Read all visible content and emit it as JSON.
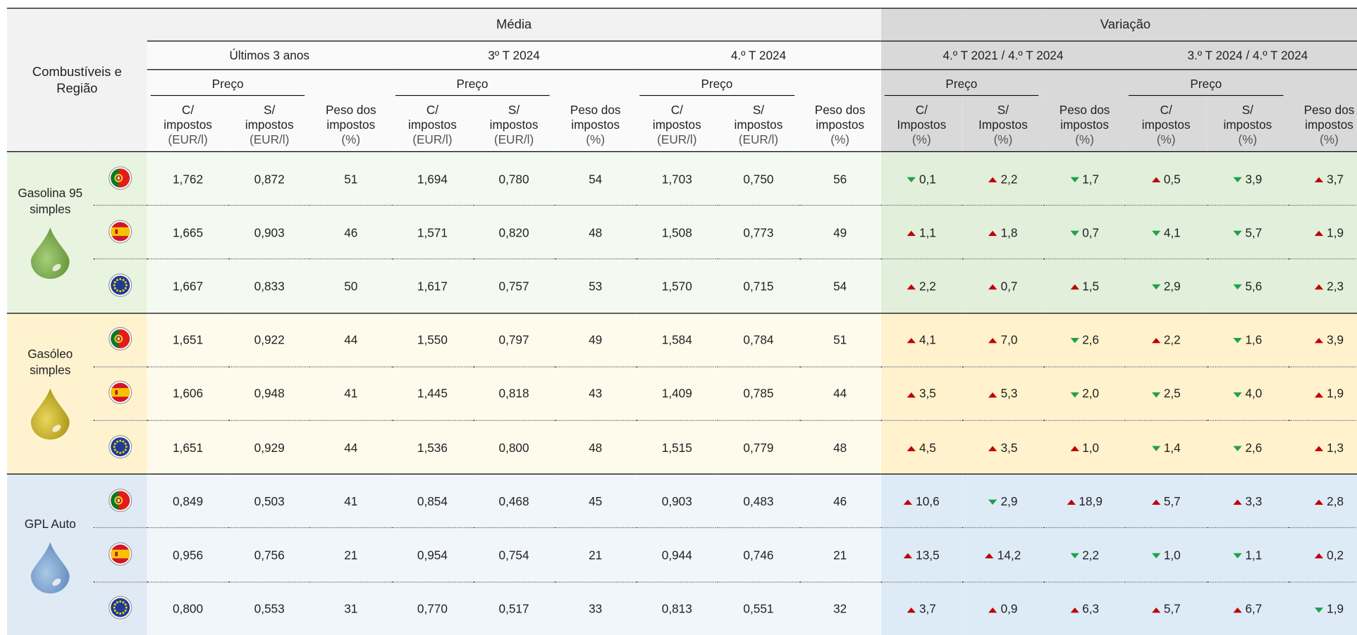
{
  "header": {
    "corner": "Combustíveis e Região",
    "groups": [
      {
        "label": "Média",
        "periods": [
          {
            "label": "Últimos 3 anos",
            "price": "Preço",
            "columns": [
              [
                "C/",
                "impostos",
                "(EUR/l)"
              ],
              [
                "S/",
                "impostos",
                "(EUR/l)"
              ],
              [
                "Peso dos",
                "impostos",
                "(%)"
              ]
            ]
          },
          {
            "label": "3º T 2024",
            "price": "Preço",
            "columns": [
              [
                "C/",
                "impostos",
                "(EUR/l)"
              ],
              [
                "S/",
                "impostos",
                "(EUR/l)"
              ],
              [
                "Peso dos",
                "impostos",
                "(%)"
              ]
            ]
          },
          {
            "label": "4.º T 2024",
            "price": "Preço",
            "columns": [
              [
                "C/",
                "impostos",
                "(EUR/l)"
              ],
              [
                "S/",
                "impostos",
                "(EUR/l)"
              ],
              [
                "Peso dos",
                "impostos",
                "(%)"
              ]
            ]
          }
        ]
      },
      {
        "label": "Variação",
        "periods": [
          {
            "label": "4.º T 2021 / 4.º T 2024",
            "price": "Preço",
            "columns": [
              [
                "C/",
                "Impostos",
                "(%)"
              ],
              [
                "S/",
                "Impostos",
                "(%)"
              ],
              [
                "Peso dos",
                "impostos",
                "(%)"
              ]
            ]
          },
          {
            "label": "3.º T 2024 / 4.º T 2024",
            "price": "Preço",
            "columns": [
              [
                "C/",
                "impostos",
                "(%)"
              ],
              [
                "S/",
                "impostos",
                "(%)"
              ],
              [
                "Peso dos",
                "impostos",
                "(%)"
              ]
            ]
          }
        ]
      }
    ]
  },
  "groups": [
    {
      "fuel": "Gasolina 95 simples",
      "rows": [
        {
          "values": [
            "1,762",
            "0,872",
            "51",
            "1,694",
            "0,780",
            "54",
            "1,703",
            "0,750",
            "56"
          ],
          "changes": [
            {
              "value": "0,1",
              "dir": "down"
            },
            {
              "value": "2,2",
              "dir": "up"
            },
            {
              "value": "1,7",
              "dir": "down"
            },
            {
              "value": "0,5",
              "dir": "up"
            },
            {
              "value": "3,9",
              "dir": "down"
            },
            {
              "value": "3,7",
              "dir": "up"
            }
          ]
        },
        {
          "values": [
            "1,665",
            "0,903",
            "46",
            "1,571",
            "0,820",
            "48",
            "1,508",
            "0,773",
            "49"
          ],
          "changes": [
            {
              "value": "1,1",
              "dir": "up"
            },
            {
              "value": "1,8",
              "dir": "up"
            },
            {
              "value": "0,7",
              "dir": "down"
            },
            {
              "value": "4,1",
              "dir": "down"
            },
            {
              "value": "5,7",
              "dir": "down"
            },
            {
              "value": "1,9",
              "dir": "up"
            }
          ]
        },
        {
          "values": [
            "1,667",
            "0,833",
            "50",
            "1,617",
            "0,757",
            "53",
            "1,570",
            "0,715",
            "54"
          ],
          "changes": [
            {
              "value": "2,2",
              "dir": "up"
            },
            {
              "value": "0,7",
              "dir": "up"
            },
            {
              "value": "1,5",
              "dir": "up"
            },
            {
              "value": "2,9",
              "dir": "down"
            },
            {
              "value": "5,6",
              "dir": "down"
            },
            {
              "value": "2,3",
              "dir": "up"
            }
          ]
        }
      ]
    },
    {
      "fuel": "Gasóleo simples",
      "rows": [
        {
          "values": [
            "1,651",
            "0,922",
            "44",
            "1,550",
            "0,797",
            "49",
            "1,584",
            "0,784",
            "51"
          ],
          "changes": [
            {
              "value": "4,1",
              "dir": "up"
            },
            {
              "value": "7,0",
              "dir": "up"
            },
            {
              "value": "2,6",
              "dir": "down"
            },
            {
              "value": "2,2",
              "dir": "up"
            },
            {
              "value": "1,6",
              "dir": "down"
            },
            {
              "value": "3,9",
              "dir": "up"
            }
          ]
        },
        {
          "values": [
            "1,606",
            "0,948",
            "41",
            "1,445",
            "0,818",
            "43",
            "1,409",
            "0,785",
            "44"
          ],
          "changes": [
            {
              "value": "3,5",
              "dir": "up"
            },
            {
              "value": "5,3",
              "dir": "up"
            },
            {
              "value": "2,0",
              "dir": "down"
            },
            {
              "value": "2,5",
              "dir": "down"
            },
            {
              "value": "4,0",
              "dir": "down"
            },
            {
              "value": "1,9",
              "dir": "up"
            }
          ]
        },
        {
          "values": [
            "1,651",
            "0,929",
            "44",
            "1,536",
            "0,800",
            "48",
            "1,515",
            "0,779",
            "48"
          ],
          "changes": [
            {
              "value": "4,5",
              "dir": "up"
            },
            {
              "value": "3,5",
              "dir": "up"
            },
            {
              "value": "1,0",
              "dir": "up"
            },
            {
              "value": "1,4",
              "dir": "down"
            },
            {
              "value": "2,6",
              "dir": "down"
            },
            {
              "value": "1,3",
              "dir": "up"
            }
          ]
        }
      ]
    },
    {
      "fuel": "GPL Auto",
      "rows": [
        {
          "values": [
            "0,849",
            "0,503",
            "41",
            "0,854",
            "0,468",
            "45",
            "0,903",
            "0,483",
            "46"
          ],
          "changes": [
            {
              "value": "10,6",
              "dir": "up"
            },
            {
              "value": "2,9",
              "dir": "down"
            },
            {
              "value": "18,9",
              "dir": "up"
            },
            {
              "value": "5,7",
              "dir": "up"
            },
            {
              "value": "3,3",
              "dir": "up"
            },
            {
              "value": "2,8",
              "dir": "up"
            }
          ]
        },
        {
          "values": [
            "0,956",
            "0,756",
            "21",
            "0,954",
            "0,754",
            "21",
            "0,944",
            "0,746",
            "21"
          ],
          "changes": [
            {
              "value": "13,5",
              "dir": "up"
            },
            {
              "value": "14,2",
              "dir": "up"
            },
            {
              "value": "2,2",
              "dir": "down"
            },
            {
              "value": "1,0",
              "dir": "down"
            },
            {
              "value": "1,1",
              "dir": "down"
            },
            {
              "value": "0,2",
              "dir": "up"
            }
          ]
        },
        {
          "values": [
            "0,800",
            "0,553",
            "31",
            "0,770",
            "0,517",
            "33",
            "0,813",
            "0,551",
            "32"
          ],
          "changes": [
            {
              "value": "3,7",
              "dir": "up"
            },
            {
              "value": "0,9",
              "dir": "up"
            },
            {
              "value": "6,3",
              "dir": "up"
            },
            {
              "value": "5,7",
              "dir": "up"
            },
            {
              "value": "6,7",
              "dir": "up"
            },
            {
              "value": "1,9",
              "dir": "down"
            }
          ]
        }
      ]
    }
  ]
}
